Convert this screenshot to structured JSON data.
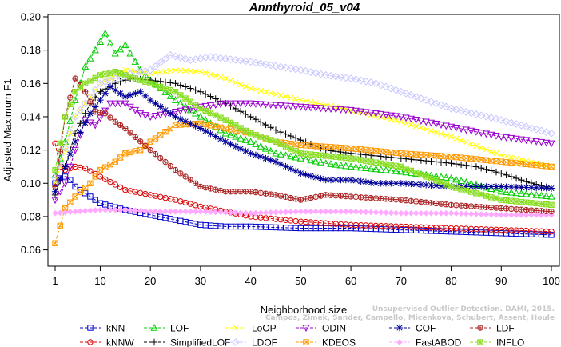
{
  "watermark": {
    "line1": "Unsupervised Outlier Detection. DAMI, 2015.",
    "line2": "Campos, Zimek, Sander, Campello, Micenkova, Schubert, Assent, Houle"
  },
  "chart_data": {
    "type": "line",
    "title": "Annthyroid_05_v04",
    "xlabel": "Neighborhood size",
    "ylabel": "Adjusted Maximum F1",
    "xlim": [
      1,
      100
    ],
    "ylim": [
      0.055,
      0.2
    ],
    "xticks": [
      "1",
      "10",
      "20",
      "30",
      "40",
      "50",
      "60",
      "70",
      "80",
      "90",
      "100"
    ],
    "yticks": [
      "0.06",
      "0.08",
      "0.10",
      "0.12",
      "0.14",
      "0.16",
      "0.18",
      "0.20"
    ],
    "grid": false,
    "legend": "bottom",
    "series": [
      {
        "name": "kNN",
        "color": "#0000cc",
        "marker": "square",
        "dash": "4,2",
        "points": [
          [
            1,
            0.1
          ],
          [
            2,
            0.103
          ],
          [
            3,
            0.104
          ],
          [
            4,
            0.102
          ],
          [
            5,
            0.098
          ],
          [
            7,
            0.094
          ],
          [
            10,
            0.088
          ],
          [
            15,
            0.084
          ],
          [
            20,
            0.081
          ],
          [
            25,
            0.078
          ],
          [
            30,
            0.075
          ],
          [
            35,
            0.074
          ],
          [
            40,
            0.074
          ],
          [
            50,
            0.073
          ],
          [
            60,
            0.073
          ],
          [
            70,
            0.072
          ],
          [
            80,
            0.071
          ],
          [
            90,
            0.07
          ],
          [
            100,
            0.069
          ]
        ]
      },
      {
        "name": "kNNW",
        "color": "#dd0000",
        "marker": "circle",
        "dash": "4,2",
        "points": [
          [
            1,
            0.124
          ],
          [
            2,
            0.11
          ],
          [
            3,
            0.108
          ],
          [
            5,
            0.11
          ],
          [
            7,
            0.109
          ],
          [
            10,
            0.104
          ],
          [
            15,
            0.096
          ],
          [
            20,
            0.093
          ],
          [
            25,
            0.09
          ],
          [
            30,
            0.086
          ],
          [
            35,
            0.083
          ],
          [
            40,
            0.08
          ],
          [
            50,
            0.077
          ],
          [
            60,
            0.075
          ],
          [
            70,
            0.074
          ],
          [
            80,
            0.073
          ],
          [
            90,
            0.072
          ],
          [
            100,
            0.071
          ]
        ]
      },
      {
        "name": "LOF",
        "color": "#00cc00",
        "marker": "triangle",
        "dash": "4,2",
        "points": [
          [
            1,
            0.105
          ],
          [
            3,
            0.125
          ],
          [
            5,
            0.15
          ],
          [
            7,
            0.17
          ],
          [
            9,
            0.18
          ],
          [
            11,
            0.19
          ],
          [
            13,
            0.178
          ],
          [
            15,
            0.183
          ],
          [
            18,
            0.168
          ],
          [
            20,
            0.162
          ],
          [
            25,
            0.15
          ],
          [
            30,
            0.14
          ],
          [
            35,
            0.13
          ],
          [
            40,
            0.125
          ],
          [
            45,
            0.118
          ],
          [
            50,
            0.115
          ],
          [
            55,
            0.112
          ],
          [
            60,
            0.11
          ],
          [
            70,
            0.107
          ],
          [
            80,
            0.103
          ],
          [
            90,
            0.095
          ],
          [
            100,
            0.092
          ]
        ]
      },
      {
        "name": "SimplifiedLOF",
        "color": "#000000",
        "marker": "plus",
        "dash": "4,2",
        "points": [
          [
            1,
            0.093
          ],
          [
            3,
            0.11
          ],
          [
            5,
            0.13
          ],
          [
            8,
            0.148
          ],
          [
            10,
            0.155
          ],
          [
            13,
            0.16
          ],
          [
            16,
            0.163
          ],
          [
            20,
            0.162
          ],
          [
            25,
            0.16
          ],
          [
            30,
            0.155
          ],
          [
            35,
            0.148
          ],
          [
            40,
            0.14
          ],
          [
            45,
            0.132
          ],
          [
            50,
            0.126
          ],
          [
            55,
            0.12
          ],
          [
            60,
            0.118
          ],
          [
            70,
            0.115
          ],
          [
            80,
            0.112
          ],
          [
            85,
            0.11
          ],
          [
            90,
            0.106
          ],
          [
            95,
            0.101
          ],
          [
            100,
            0.097
          ]
        ]
      },
      {
        "name": "LoOP",
        "color": "#ffff00",
        "marker": "x",
        "dash": "4,2",
        "points": [
          [
            1,
            0.1
          ],
          [
            5,
            0.14
          ],
          [
            10,
            0.16
          ],
          [
            15,
            0.168
          ],
          [
            20,
            0.166
          ],
          [
            25,
            0.168
          ],
          [
            30,
            0.167
          ],
          [
            35,
            0.163
          ],
          [
            40,
            0.157
          ],
          [
            50,
            0.15
          ],
          [
            60,
            0.144
          ],
          [
            70,
            0.137
          ],
          [
            80,
            0.128
          ],
          [
            90,
            0.117
          ],
          [
            100,
            0.11
          ]
        ]
      },
      {
        "name": "LDOF",
        "color": "#c8c8ff",
        "marker": "diamond",
        "dash": "4,2",
        "points": [
          [
            1,
            0.103
          ],
          [
            5,
            0.14
          ],
          [
            10,
            0.16
          ],
          [
            15,
            0.165
          ],
          [
            20,
            0.168
          ],
          [
            24,
            0.177
          ],
          [
            28,
            0.174
          ],
          [
            32,
            0.176
          ],
          [
            40,
            0.173
          ],
          [
            50,
            0.168
          ],
          [
            55,
            0.165
          ],
          [
            60,
            0.163
          ],
          [
            65,
            0.16
          ],
          [
            70,
            0.155
          ],
          [
            75,
            0.15
          ],
          [
            80,
            0.145
          ],
          [
            90,
            0.138
          ],
          [
            100,
            0.13
          ]
        ]
      },
      {
        "name": "ODIN",
        "color": "#9900cc",
        "marker": "triangle-down",
        "dash": "4,2",
        "points": [
          [
            1,
            0.09
          ],
          [
            3,
            0.1
          ],
          [
            5,
            0.12
          ],
          [
            7,
            0.138
          ],
          [
            9,
            0.135
          ],
          [
            12,
            0.148
          ],
          [
            15,
            0.148
          ],
          [
            18,
            0.142
          ],
          [
            20,
            0.14
          ],
          [
            25,
            0.143
          ],
          [
            30,
            0.146
          ],
          [
            35,
            0.148
          ],
          [
            40,
            0.148
          ],
          [
            50,
            0.146
          ],
          [
            60,
            0.144
          ],
          [
            70,
            0.14
          ],
          [
            80,
            0.134
          ],
          [
            90,
            0.128
          ],
          [
            100,
            0.124
          ]
        ]
      },
      {
        "name": "KDEOS",
        "color": "#ff9900",
        "marker": "square-x",
        "dash": "4,2",
        "points": [
          [
            1,
            0.064
          ],
          [
            3,
            0.085
          ],
          [
            5,
            0.092
          ],
          [
            8,
            0.1
          ],
          [
            10,
            0.108
          ],
          [
            13,
            0.113
          ],
          [
            15,
            0.118
          ],
          [
            18,
            0.12
          ],
          [
            20,
            0.125
          ],
          [
            25,
            0.135
          ],
          [
            30,
            0.136
          ],
          [
            35,
            0.133
          ],
          [
            40,
            0.13
          ],
          [
            45,
            0.125
          ],
          [
            50,
            0.123
          ],
          [
            60,
            0.121
          ],
          [
            70,
            0.118
          ],
          [
            80,
            0.116
          ],
          [
            90,
            0.113
          ],
          [
            100,
            0.11
          ]
        ]
      },
      {
        "name": "COF",
        "color": "#000099",
        "marker": "asterisk",
        "dash": "4,2",
        "points": [
          [
            1,
            0.095
          ],
          [
            3,
            0.11
          ],
          [
            5,
            0.125
          ],
          [
            8,
            0.142
          ],
          [
            10,
            0.15
          ],
          [
            12,
            0.158
          ],
          [
            15,
            0.152
          ],
          [
            18,
            0.155
          ],
          [
            20,
            0.15
          ],
          [
            25,
            0.14
          ],
          [
            30,
            0.133
          ],
          [
            35,
            0.125
          ],
          [
            40,
            0.118
          ],
          [
            45,
            0.113
          ],
          [
            50,
            0.106
          ],
          [
            55,
            0.102
          ],
          [
            60,
            0.102
          ],
          [
            65,
            0.1
          ],
          [
            70,
            0.1
          ],
          [
            80,
            0.098
          ],
          [
            90,
            0.098
          ],
          [
            100,
            0.097
          ]
        ]
      },
      {
        "name": "FastABOD",
        "color": "#ffaaff",
        "marker": "diamond-filled",
        "dash": "4,2",
        "points": [
          [
            1,
            0.082
          ],
          [
            5,
            0.083
          ],
          [
            10,
            0.084
          ],
          [
            15,
            0.084
          ],
          [
            20,
            0.083
          ],
          [
            30,
            0.083
          ],
          [
            40,
            0.082
          ],
          [
            50,
            0.083
          ],
          [
            60,
            0.083
          ],
          [
            70,
            0.082
          ],
          [
            80,
            0.082
          ],
          [
            90,
            0.081
          ],
          [
            100,
            0.081
          ]
        ]
      },
      {
        "name": "LDF",
        "color": "#aa2222",
        "marker": "circle-plus",
        "dash": "4,2",
        "points": [
          [
            1,
            0.098
          ],
          [
            3,
            0.14
          ],
          [
            5,
            0.163
          ],
          [
            7,
            0.155
          ],
          [
            9,
            0.143
          ],
          [
            11,
            0.142
          ],
          [
            13,
            0.137
          ],
          [
            15,
            0.133
          ],
          [
            20,
            0.12
          ],
          [
            25,
            0.108
          ],
          [
            30,
            0.098
          ],
          [
            35,
            0.095
          ],
          [
            40,
            0.095
          ],
          [
            45,
            0.093
          ],
          [
            50,
            0.09
          ],
          [
            55,
            0.093
          ],
          [
            60,
            0.092
          ],
          [
            70,
            0.09
          ],
          [
            80,
            0.087
          ],
          [
            90,
            0.085
          ],
          [
            100,
            0.083
          ]
        ]
      },
      {
        "name": "INFLO",
        "color": "#88dd22",
        "marker": "star-box",
        "dash": "4,2",
        "points": [
          [
            1,
            0.108
          ],
          [
            3,
            0.14
          ],
          [
            5,
            0.155
          ],
          [
            7,
            0.16
          ],
          [
            10,
            0.165
          ],
          [
            13,
            0.167
          ],
          [
            15,
            0.165
          ],
          [
            20,
            0.16
          ],
          [
            25,
            0.155
          ],
          [
            30,
            0.145
          ],
          [
            35,
            0.138
          ],
          [
            40,
            0.13
          ],
          [
            45,
            0.125
          ],
          [
            50,
            0.118
          ],
          [
            60,
            0.115
          ],
          [
            70,
            0.11
          ],
          [
            80,
            0.098
          ],
          [
            90,
            0.09
          ],
          [
            100,
            0.087
          ]
        ]
      }
    ]
  }
}
